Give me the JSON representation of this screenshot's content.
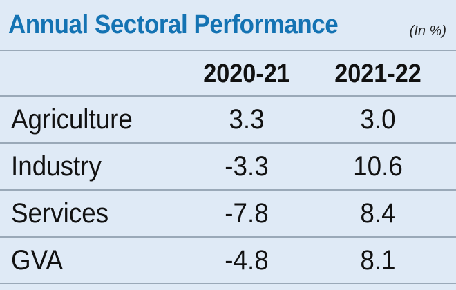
{
  "chart_data": {
    "type": "table",
    "title": "Annual Sectoral Performance",
    "unit_note": "(In %)",
    "columns": [
      "2020-21",
      "2021-22"
    ],
    "rows": [
      {
        "label": "Agriculture",
        "values": [
          "3.3",
          "3.0"
        ]
      },
      {
        "label": "Industry",
        "values": [
          "-3.3",
          "10.6"
        ]
      },
      {
        "label": "Services",
        "values": [
          "-7.8",
          "8.4"
        ]
      },
      {
        "label": "GVA",
        "values": [
          "-4.8",
          "8.1"
        ]
      }
    ]
  },
  "colors": {
    "background": "#dfeaf6",
    "title": "#1473b3",
    "text": "#111111",
    "rule": "#9aa9b8"
  }
}
